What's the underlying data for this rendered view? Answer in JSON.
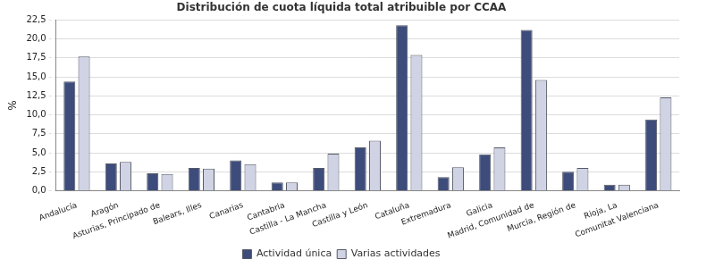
{
  "chart_data": {
    "type": "bar",
    "title": "Distribución de cuota líquida total atribuible por CCAA",
    "y_label": "%",
    "categories": [
      "Andalucía",
      "Aragón",
      "Asturias, Principado de",
      "Balears, Illes",
      "Canarias",
      "Cantabria",
      "Castilla - La Mancha",
      "Castilla y León",
      "Cataluña",
      "Extremadura",
      "Galicia",
      "Madrid, Comunidad de",
      "Murcia, Región de",
      "Rioja, La",
      "Comunitat Valenciana"
    ],
    "series": [
      {
        "name": "Actividad única",
        "color": "#3d4c7a",
        "values": [
          14.4,
          3.6,
          2.3,
          3.0,
          4.0,
          1.1,
          3.0,
          5.7,
          21.8,
          1.8,
          4.8,
          21.2,
          2.5,
          0.8,
          9.4
        ]
      },
      {
        "name": "Varias actividades",
        "color": "#cfd3e4",
        "values": [
          17.7,
          3.8,
          2.2,
          2.9,
          3.5,
          1.1,
          4.9,
          6.6,
          17.9,
          3.1,
          5.7,
          14.6,
          3.0,
          0.8,
          12.3
        ]
      }
    ],
    "ylim": [
      0,
      22.5
    ],
    "yticks": [
      {
        "value": 0,
        "label": "0,0"
      },
      {
        "value": 2.5,
        "label": "2,5"
      },
      {
        "value": 5,
        "label": "5,0"
      },
      {
        "value": 7.5,
        "label": "7,5"
      },
      {
        "value": 10,
        "label": "10,0"
      },
      {
        "value": 12.5,
        "label": "12,5"
      },
      {
        "value": 15,
        "label": "15,0"
      },
      {
        "value": 17.5,
        "label": "17,5"
      },
      {
        "value": 20,
        "label": "20,0"
      },
      {
        "value": 22.5,
        "label": "22,5"
      }
    ],
    "grid": true,
    "legend": "bottom"
  }
}
